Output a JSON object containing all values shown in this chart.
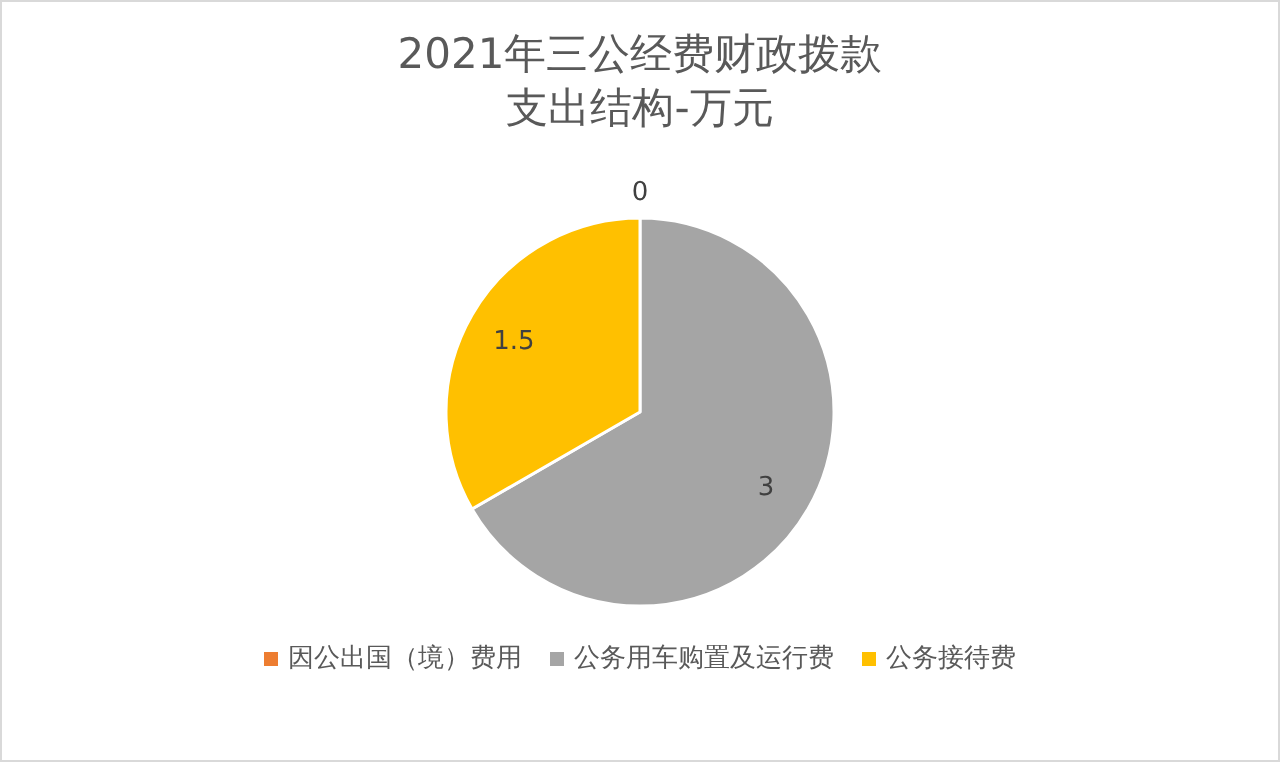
{
  "chart_data": {
    "type": "pie",
    "title": "2021年三公经费财政拨款支出结构-万元",
    "categories": [
      "因公出国（境）费用",
      "公务用车购置及运行费",
      "公务接待费"
    ],
    "values": [
      0,
      3,
      1.5
    ],
    "value_labels": [
      "0",
      "3",
      "1.5"
    ],
    "colors": [
      "#ed7d31",
      "#a5a5a5",
      "#ffc000"
    ],
    "legend": "bottom"
  }
}
